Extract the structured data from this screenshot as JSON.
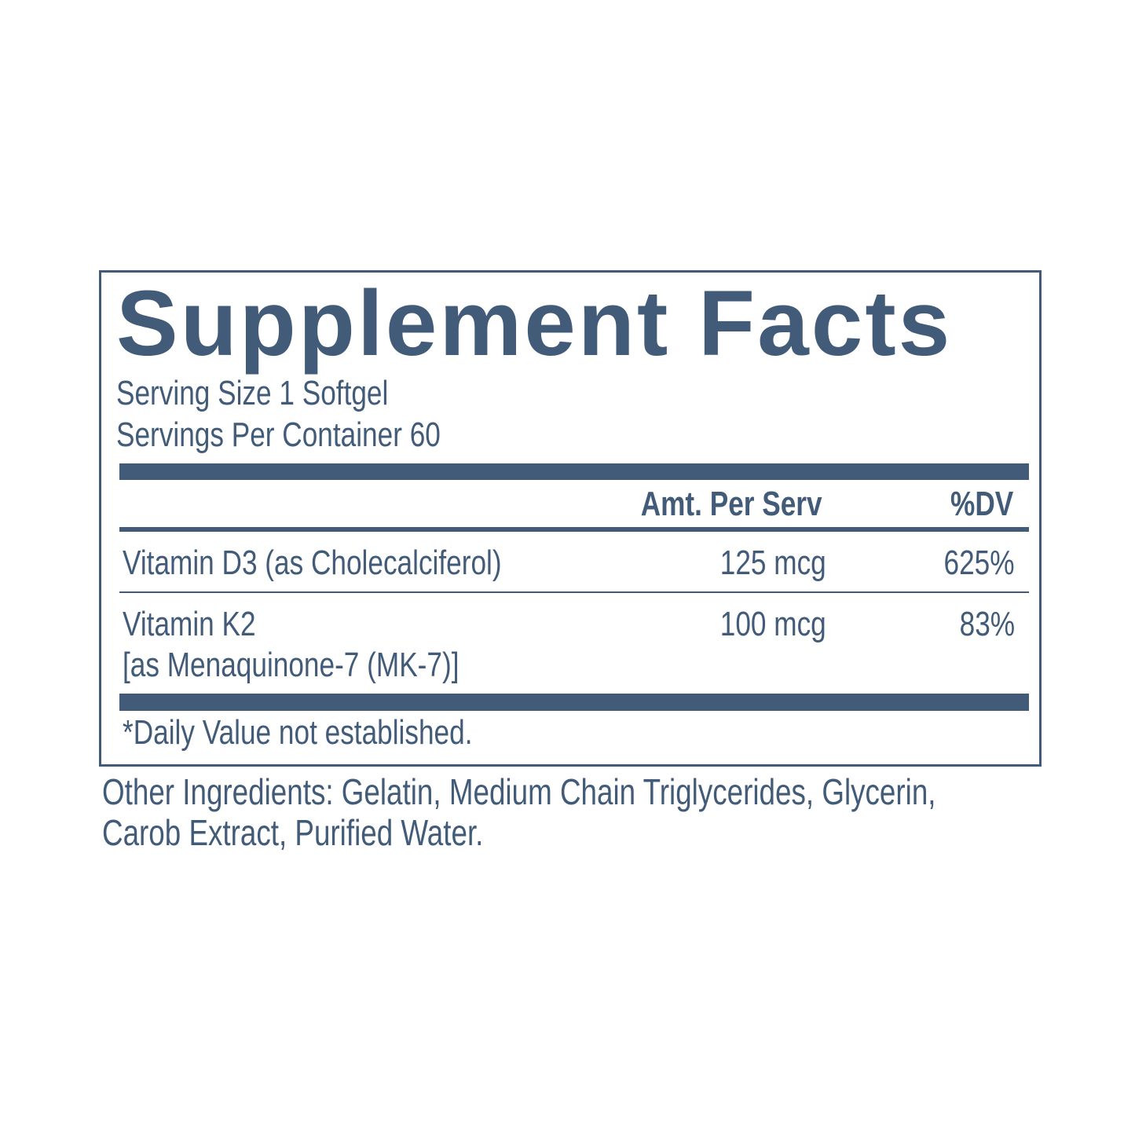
{
  "title": "Supplement Facts",
  "serving_size": "Serving Size 1 Softgel",
  "servings_per_container": "Servings Per Container 60",
  "columns": {
    "amount": "Amt. Per Serv",
    "dv": "%DV"
  },
  "rows": [
    {
      "name": "Vitamin D3 (as  Cholecalciferol)",
      "name_line2": "",
      "amount": "125 mcg",
      "dv": "625%"
    },
    {
      "name": "Vitamin K2",
      "name_line2": "[as Menaquinone-7 (MK-7)]",
      "amount": "100 mcg",
      "dv": "83%"
    }
  ],
  "footnote": "*Daily Value not established.",
  "other_ingredients": [
    "Other Ingredients: Gelatin, Medium Chain Triglycerides, Glycerin,",
    "Carob Extract, Purified Water."
  ],
  "colors": {
    "text": "#425b78"
  }
}
